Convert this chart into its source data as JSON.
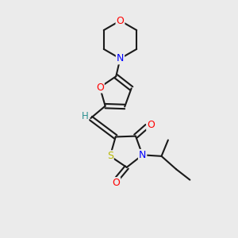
{
  "bg_color": "#ebebeb",
  "atom_colors": {
    "O": "#ff0000",
    "N": "#0000ff",
    "S": "#b8b800",
    "C": "#1a1a1a",
    "H": "#2a9090"
  },
  "figsize": [
    3.0,
    3.0
  ],
  "dpi": 100
}
